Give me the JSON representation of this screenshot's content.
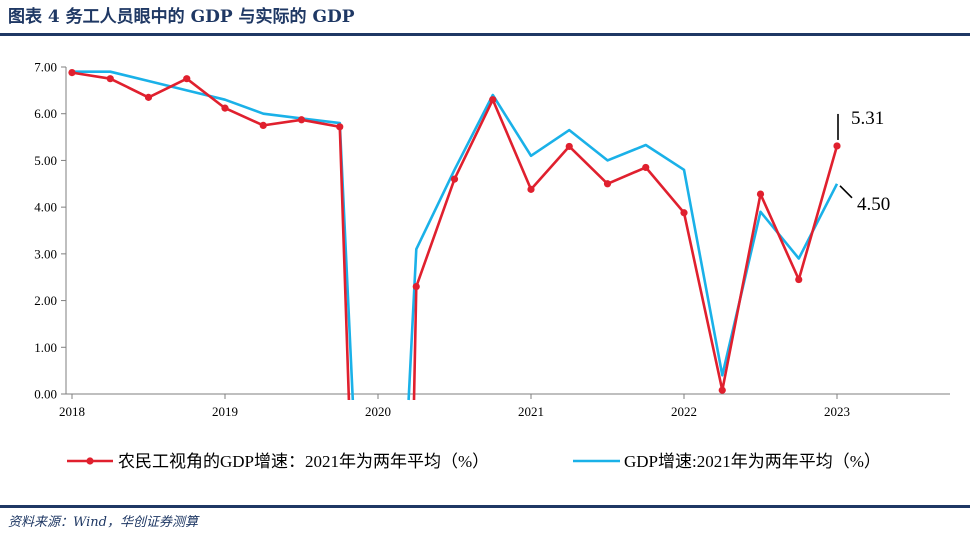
{
  "header": {
    "title": "图表 4   务工人员眼中的 GDP 与实际的 GDP"
  },
  "footer": {
    "source": "资料来源：Wind，华创证券测算"
  },
  "colors": {
    "rural": "#e0202e",
    "gdp": "#1ab1e8",
    "title": "#1f3864",
    "axis": "#7f7f7f"
  },
  "chart_data": {
    "type": "line",
    "xlabel": "",
    "ylabel": "",
    "x_ticks": [
      "2018",
      "2019",
      "2020",
      "2021",
      "2022",
      "2023"
    ],
    "y_ticks": [
      "0.00",
      "1.00",
      "2.00",
      "3.00",
      "4.00",
      "5.00",
      "6.00",
      "7.00"
    ],
    "ylim": [
      0,
      7
    ],
    "grid": false,
    "legend_position": "bottom",
    "series": [
      {
        "name": "农民工视角的GDP增速：2021年为两年平均（%）",
        "marker": "dot",
        "points": [
          {
            "x": "2018-Q1",
            "y": 6.88
          },
          {
            "x": "2018-Q2",
            "y": 6.75
          },
          {
            "x": "2018-Q3",
            "y": 6.35
          },
          {
            "x": "2018-Q4",
            "y": 6.75
          },
          {
            "x": "2019-Q1",
            "y": 6.12
          },
          {
            "x": "2019-Q2",
            "y": 5.75
          },
          {
            "x": "2019-Q3",
            "y": 5.87
          },
          {
            "x": "2019-Q4",
            "y": 5.72
          },
          {
            "x": "2020-Q1",
            "y": null
          },
          {
            "x": "2020-Q2",
            "y": 2.3
          },
          {
            "x": "2020-Q3",
            "y": 4.6
          },
          {
            "x": "2020-Q4",
            "y": 6.3
          },
          {
            "x": "2021-Q1",
            "y": 4.38
          },
          {
            "x": "2021-Q2",
            "y": 5.3
          },
          {
            "x": "2021-Q3",
            "y": 4.5
          },
          {
            "x": "2021-Q4",
            "y": 4.85
          },
          {
            "x": "2022-Q1",
            "y": 3.88
          },
          {
            "x": "2022-Q2",
            "y": 0.08
          },
          {
            "x": "2022-Q3",
            "y": 4.28
          },
          {
            "x": "2022-Q4",
            "y": 2.45
          },
          {
            "x": "2023-Q1",
            "y": 5.31
          }
        ]
      },
      {
        "name": "GDP增速:2021年为两年平均（%）",
        "marker": "none",
        "points": [
          {
            "x": "2018-Q1",
            "y": 6.9
          },
          {
            "x": "2018-Q2",
            "y": 6.9
          },
          {
            "x": "2018-Q3",
            "y": 6.7
          },
          {
            "x": "2018-Q4",
            "y": 6.5
          },
          {
            "x": "2019-Q1",
            "y": 6.3
          },
          {
            "x": "2019-Q2",
            "y": 6.0
          },
          {
            "x": "2019-Q3",
            "y": 5.9
          },
          {
            "x": "2019-Q4",
            "y": 5.8
          },
          {
            "x": "2020-Q1",
            "y": null
          },
          {
            "x": "2020-Q2",
            "y": 3.1
          },
          {
            "x": "2020-Q3",
            "y": 4.8
          },
          {
            "x": "2020-Q4",
            "y": 6.4
          },
          {
            "x": "2021-Q1",
            "y": 5.1
          },
          {
            "x": "2021-Q2",
            "y": 5.65
          },
          {
            "x": "2021-Q3",
            "y": 5.0
          },
          {
            "x": "2021-Q4",
            "y": 5.33
          },
          {
            "x": "2022-Q1",
            "y": 4.8
          },
          {
            "x": "2022-Q2",
            "y": 0.4
          },
          {
            "x": "2022-Q3",
            "y": 3.9
          },
          {
            "x": "2022-Q4",
            "y": 2.9
          },
          {
            "x": "2023-Q1",
            "y": 4.5
          }
        ]
      }
    ],
    "annotations": [
      {
        "text": "5.31",
        "series": 0,
        "point": "2023-Q1"
      },
      {
        "text": "4.50",
        "series": 1,
        "point": "2023-Q1"
      }
    ]
  }
}
